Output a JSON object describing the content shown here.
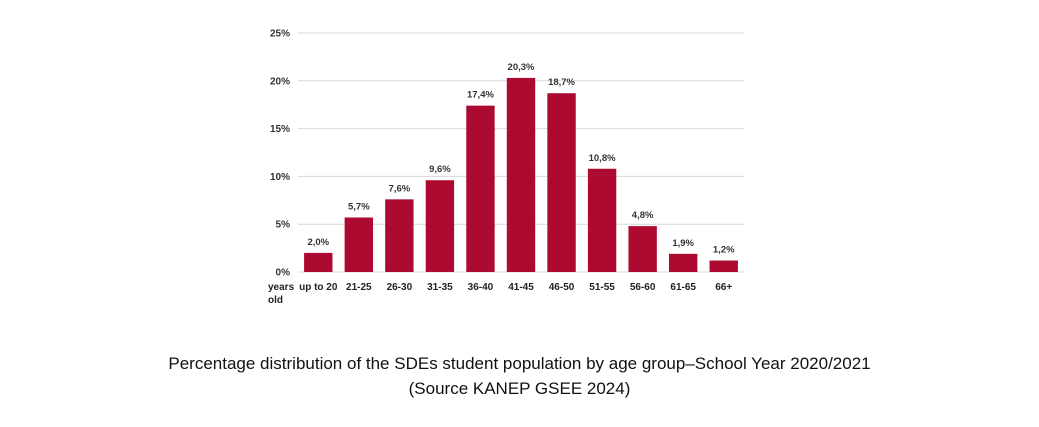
{
  "chart_data": {
    "type": "bar",
    "categories": [
      "up to 20",
      "21-25",
      "26-30",
      "31-35",
      "36-40",
      "41-45",
      "46-50",
      "51-55",
      "56-60",
      "61-65",
      "66+"
    ],
    "values": [
      2.0,
      5.7,
      7.6,
      9.6,
      17.4,
      20.3,
      18.7,
      10.8,
      4.8,
      1.9,
      1.2
    ],
    "data_labels": [
      "2,0%",
      "5,7%",
      "7,6%",
      "9,6%",
      "17,4%",
      "20,3%",
      "18,7%",
      "10,8%",
      "4,8%",
      "1,9%",
      "1,2%"
    ],
    "yticks": [
      0,
      5,
      10,
      15,
      20,
      25
    ],
    "ytick_labels": [
      "0%",
      "5%",
      "10%",
      "15%",
      "20%",
      "25%"
    ],
    "ylim": [
      0,
      25
    ],
    "xlabel_lines": [
      "years",
      "old"
    ],
    "grid": true,
    "bar_color": "#ad0a31",
    "grid_color": "#d9d9d9"
  },
  "caption": {
    "title": "Percentage distribution of the SDEs student population by age group–School Year 2020/2021",
    "source": "(Source KANEP GSEE 2024)"
  }
}
